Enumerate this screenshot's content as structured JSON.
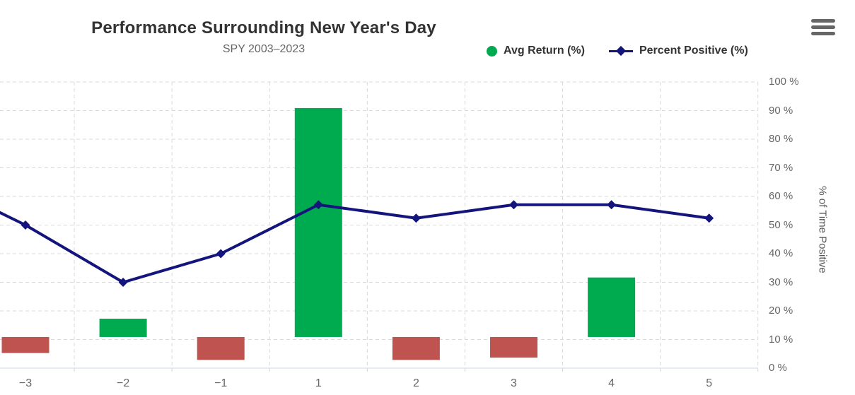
{
  "header": {
    "title": "Performance Surrounding New Year's Day",
    "subtitle": "SPY 2003–2023"
  },
  "menu": {
    "icon": "hamburger-icon"
  },
  "legend": {
    "items": [
      {
        "label": "Avg Return (%)",
        "marker": "circle",
        "color": "#00ab50"
      },
      {
        "label": "Percent Positive (%)",
        "marker": "diamond-line",
        "color": "#14147d"
      }
    ]
  },
  "chart_data": {
    "type": "combo-bar-line",
    "title": "Performance Surrounding New Year's Day",
    "subtitle": "SPY 2003–2023",
    "categories": [
      "−3",
      "−2",
      "−1",
      "1",
      "2",
      "3",
      "4",
      "5"
    ],
    "series": [
      {
        "name": "Avg Return (%)",
        "type": "bar",
        "axis": "y1",
        "values": [
          -0.07,
          0.08,
          -0.1,
          1.0,
          -0.1,
          -0.09,
          0.26,
          0
        ],
        "positive_color": "#00ab50",
        "negative_color": "#bf5350"
      },
      {
        "name": "Percent Positive (%)",
        "type": "line",
        "axis": "y2",
        "marker": "diamond",
        "color": "#14147d",
        "values": [
          50,
          30,
          40,
          57.1,
          52.4,
          57.1,
          57.1,
          52.4
        ],
        "offscreen_left_value": 66.7
      }
    ],
    "y1": {
      "visible": false,
      "min": -0.136,
      "max": 1.114
    },
    "y2": {
      "title": "% of Time Positive",
      "position": "right",
      "min": 0,
      "max": 100,
      "tick_interval": 10,
      "tick_labels": [
        "0 %",
        "10 %",
        "20 %",
        "30 %",
        "40 %",
        "50 %",
        "60 %",
        "70 %",
        "80 %",
        "90 %",
        "100 %"
      ]
    },
    "grid": {
      "horizontal": true,
      "vertical": true,
      "style": "dashed"
    },
    "grid_color": "#d9d9d9",
    "axis_line_color": "#ccd6eb",
    "legend_position": "top",
    "left_edge_cropped": true
  }
}
